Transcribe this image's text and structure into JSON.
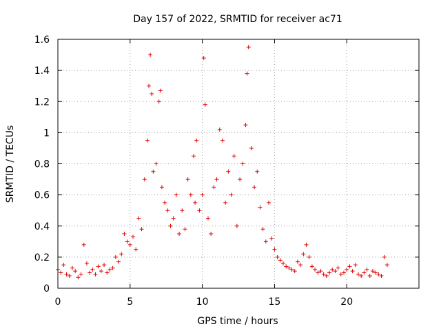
{
  "chart_data": {
    "type": "scatter",
    "title": "Day 157 of 2022, SRMTID for receiver ac71",
    "xlabel": "GPS time / hours",
    "ylabel": "SRMTID / TECUs",
    "xlim": [
      0,
      25
    ],
    "ylim": [
      0,
      1.6
    ],
    "xticks": [
      0,
      5,
      10,
      15,
      20
    ],
    "yticks": [
      0,
      0.2,
      0.4,
      0.6,
      0.8,
      1,
      1.2,
      1.4,
      1.6
    ],
    "xtick_labels": [
      "0",
      "5",
      "10",
      "15",
      "20"
    ],
    "ytick_labels": [
      "0",
      "0.2",
      "0.4",
      "0.6",
      "0.8",
      "1",
      "1.2",
      "1.4",
      "1.6"
    ],
    "grid": true,
    "marker": "+",
    "marker_color": "#e00000",
    "series": [
      {
        "name": "SRMTID",
        "x": [
          0.0,
          0.2,
          0.4,
          0.6,
          0.8,
          1.0,
          1.2,
          1.4,
          1.6,
          1.8,
          2.0,
          2.2,
          2.4,
          2.6,
          2.8,
          3.0,
          3.2,
          3.4,
          3.6,
          3.8,
          4.0,
          4.2,
          4.4,
          4.6,
          4.8,
          5.0,
          5.2,
          5.4,
          5.6,
          5.8,
          6.0,
          6.2,
          6.3,
          6.4,
          6.5,
          6.6,
          6.8,
          7.0,
          7.1,
          7.2,
          7.4,
          7.6,
          7.8,
          8.0,
          8.2,
          8.4,
          8.6,
          8.8,
          9.0,
          9.2,
          9.4,
          9.5,
          9.6,
          9.8,
          10.0,
          10.1,
          10.2,
          10.4,
          10.6,
          10.8,
          11.0,
          11.2,
          11.4,
          11.6,
          11.8,
          12.0,
          12.2,
          12.4,
          12.6,
          12.8,
          13.0,
          13.1,
          13.2,
          13.4,
          13.6,
          13.8,
          14.0,
          14.2,
          14.4,
          14.6,
          14.8,
          15.0,
          15.2,
          15.4,
          15.6,
          15.8,
          16.0,
          16.2,
          16.4,
          16.6,
          16.8,
          17.0,
          17.2,
          17.4,
          17.6,
          17.8,
          18.0,
          18.2,
          18.4,
          18.6,
          18.8,
          19.0,
          19.2,
          19.4,
          19.6,
          19.8,
          20.0,
          20.2,
          20.4,
          20.6,
          20.8,
          21.0,
          21.2,
          21.4,
          21.6,
          21.8,
          22.0,
          22.2,
          22.4,
          22.6,
          22.8
        ],
        "y": [
          0.12,
          0.1,
          0.15,
          0.09,
          0.08,
          0.13,
          0.11,
          0.07,
          0.09,
          0.28,
          0.16,
          0.1,
          0.12,
          0.09,
          0.14,
          0.11,
          0.15,
          0.1,
          0.12,
          0.13,
          0.2,
          0.17,
          0.22,
          0.35,
          0.3,
          0.28,
          0.33,
          0.25,
          0.45,
          0.38,
          0.7,
          0.95,
          1.3,
          1.5,
          1.25,
          0.75,
          0.8,
          1.2,
          1.27,
          0.65,
          0.55,
          0.5,
          0.4,
          0.45,
          0.6,
          0.35,
          0.5,
          0.38,
          0.7,
          0.6,
          0.85,
          0.55,
          0.95,
          0.5,
          0.6,
          1.48,
          1.18,
          0.45,
          0.35,
          0.65,
          0.7,
          1.02,
          0.95,
          0.55,
          0.75,
          0.6,
          0.85,
          0.4,
          0.7,
          0.8,
          1.05,
          1.38,
          1.55,
          0.9,
          0.65,
          0.75,
          0.52,
          0.38,
          0.3,
          0.55,
          0.32,
          0.25,
          0.2,
          0.18,
          0.16,
          0.14,
          0.13,
          0.12,
          0.11,
          0.17,
          0.15,
          0.22,
          0.28,
          0.2,
          0.14,
          0.12,
          0.1,
          0.11,
          0.09,
          0.08,
          0.1,
          0.12,
          0.11,
          0.13,
          0.09,
          0.1,
          0.12,
          0.14,
          0.11,
          0.15,
          0.09,
          0.08,
          0.1,
          0.12,
          0.08,
          0.11,
          0.1,
          0.09,
          0.08,
          0.2,
          0.15
        ]
      }
    ]
  }
}
